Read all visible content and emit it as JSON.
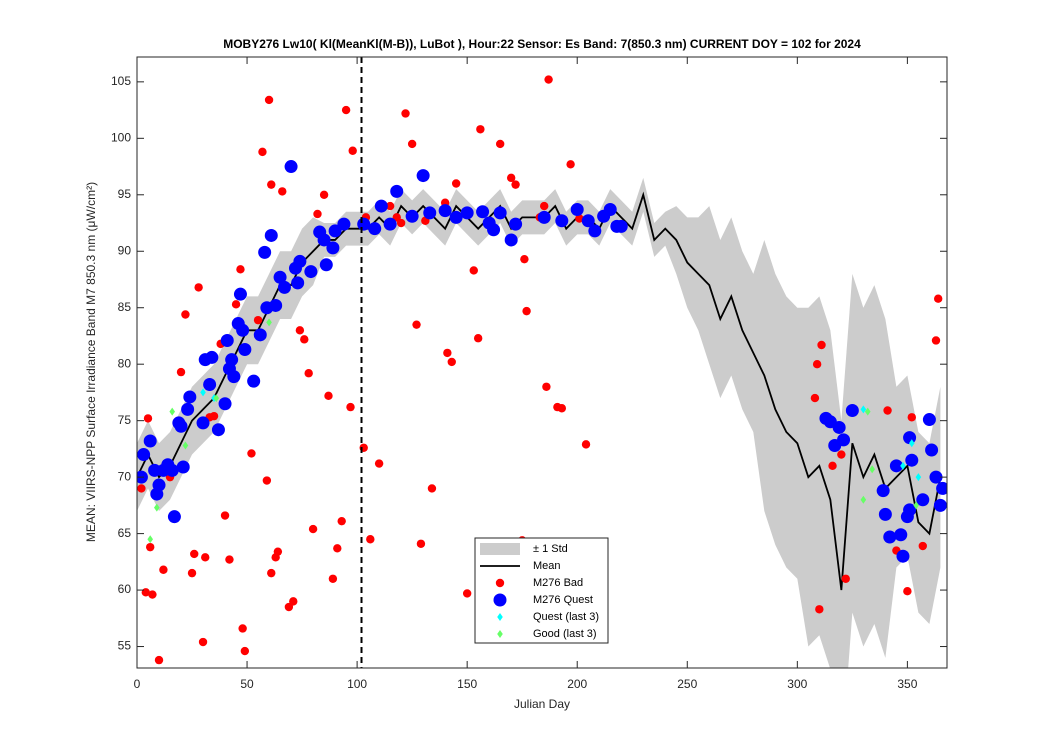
{
  "chart_data": {
    "type": "scatter",
    "title": "MOBY276   Lw10( Kl(MeanKl(M-B)), LuBot ),    Hour:22 Sensor: Es Band: 7(850.3 nm)   CURRENT DOY = 102 for 2024",
    "x_label": "Julian Day",
    "y_label": "MEAN: VIIRS-NPP Surface Irradiance Band M7 850.3 nm (μW/cm²)",
    "xlim": [
      0,
      368
    ],
    "ylim": [
      53.1,
      107.2
    ],
    "xticks": [
      0,
      50,
      100,
      150,
      200,
      250,
      300,
      350
    ],
    "yticks": [
      55,
      60,
      65,
      70,
      75,
      80,
      85,
      90,
      95,
      100,
      105
    ],
    "vline_x": 102,
    "legend_loc": "lower center",
    "series": [
      {
        "name": "± 1 Std",
        "kind": "band",
        "color": "#cccccc",
        "x": [
          0,
          5,
          10,
          15,
          20,
          25,
          30,
          35,
          40,
          45,
          50,
          55,
          60,
          65,
          70,
          75,
          80,
          85,
          90,
          95,
          100,
          105,
          110,
          115,
          120,
          125,
          130,
          135,
          140,
          145,
          150,
          155,
          160,
          165,
          170,
          175,
          180,
          185,
          190,
          195,
          200,
          205,
          210,
          215,
          220,
          225,
          230,
          235,
          240,
          245,
          250,
          255,
          260,
          265,
          270,
          275,
          280,
          285,
          290,
          295,
          300,
          305,
          310,
          315,
          320,
          325,
          330,
          335,
          340,
          345,
          350,
          355,
          360,
          365
        ],
        "upper": [
          73,
          75,
          73,
          74,
          76,
          78,
          79,
          80,
          82,
          84,
          86,
          86,
          88,
          90,
          90,
          92,
          93,
          92.5,
          92.5,
          93.5,
          93.5,
          93.5,
          94.5,
          93.5,
          95.5,
          94.5,
          95.5,
          94.5,
          93.5,
          95.5,
          94.5,
          93.5,
          94.5,
          95.5,
          93.5,
          94.5,
          94.5,
          94.5,
          95.5,
          93.5,
          94.5,
          94.5,
          93.5,
          95.5,
          94.5,
          93.5,
          96.5,
          92.5,
          93.5,
          94,
          93,
          93,
          94,
          91,
          93,
          90,
          88,
          91,
          88,
          86,
          85,
          85,
          86,
          83,
          75,
          88,
          85,
          87,
          84,
          78,
          79,
          74,
          73,
          78
        ],
        "lower": [
          67,
          69,
          67,
          68,
          70,
          72,
          73,
          74,
          76,
          78,
          80,
          80,
          82,
          84,
          84,
          86,
          87,
          89.5,
          89.5,
          90.5,
          90.5,
          90.5,
          91.5,
          90.5,
          92.5,
          91.5,
          92.5,
          91.5,
          90.5,
          92.5,
          91.5,
          90.5,
          91.5,
          92.5,
          90.5,
          91.5,
          91.5,
          91.5,
          92.5,
          90.5,
          91.5,
          91.5,
          90.5,
          92.5,
          91.5,
          90.5,
          93.5,
          89.5,
          90.5,
          88,
          85,
          83,
          80,
          77,
          79,
          76,
          74,
          67,
          64,
          62,
          61,
          55,
          56,
          53,
          45,
          58,
          55,
          57,
          54,
          62,
          63,
          58,
          57,
          62
        ]
      },
      {
        "name": "Mean",
        "kind": "line",
        "color": "#000000",
        "x": [
          0,
          5,
          10,
          15,
          20,
          25,
          30,
          35,
          40,
          45,
          50,
          55,
          60,
          65,
          70,
          75,
          80,
          85,
          90,
          95,
          100,
          105,
          110,
          115,
          120,
          125,
          130,
          135,
          140,
          145,
          150,
          155,
          160,
          165,
          170,
          175,
          180,
          185,
          190,
          195,
          200,
          205,
          210,
          215,
          220,
          225,
          230,
          235,
          240,
          245,
          250,
          255,
          260,
          265,
          270,
          275,
          280,
          285,
          290,
          295,
          300,
          305,
          310,
          315,
          320,
          325,
          330,
          335,
          340,
          345,
          350,
          355,
          360,
          365
        ],
        "values": [
          70,
          72,
          70,
          71,
          73,
          75,
          76,
          77,
          79,
          81,
          83,
          83,
          85,
          87,
          87,
          89,
          90,
          91,
          91,
          92,
          92,
          92,
          93,
          92,
          94,
          93,
          94,
          93,
          92,
          94,
          93,
          92,
          93,
          94,
          92,
          93,
          93,
          93,
          94,
          92,
          93,
          93,
          92,
          94,
          93,
          92,
          95,
          91,
          92,
          91,
          89,
          88,
          87,
          84,
          86,
          83,
          81,
          79,
          76,
          74,
          73,
          70,
          71,
          68,
          60,
          73,
          70,
          72,
          69,
          70,
          71,
          66,
          65,
          70
        ]
      },
      {
        "name": "M276 Bad",
        "kind": "dot",
        "color": "#ff0000",
        "x": [
          2,
          4,
          5,
          6,
          7,
          10,
          12,
          15,
          17,
          20,
          22,
          25,
          26,
          28,
          30,
          31,
          33,
          35,
          38,
          40,
          42,
          45,
          47,
          48,
          49,
          52,
          55,
          57,
          59,
          60,
          61,
          61,
          63,
          64,
          66,
          69,
          71,
          74,
          76,
          78,
          80,
          82,
          85,
          87,
          89,
          91,
          93,
          95,
          97,
          98,
          103,
          104,
          106,
          110,
          115,
          118,
          120,
          122,
          125,
          127,
          129,
          131,
          134,
          140,
          141,
          143,
          145,
          150,
          153,
          155,
          156,
          165,
          170,
          172,
          175,
          176,
          177,
          183,
          185,
          186,
          187,
          191,
          193,
          197,
          201,
          204,
          308,
          309,
          310,
          311,
          316,
          320,
          322,
          341,
          345,
          350,
          352,
          357,
          363,
          364
        ],
        "values": [
          69,
          59.8,
          75.2,
          63.8,
          59.6,
          53.8,
          61.8,
          70,
          66.3,
          79.3,
          84.4,
          61.5,
          63.2,
          86.8,
          55.4,
          62.9,
          75.3,
          75.4,
          81.8,
          66.6,
          62.7,
          85.3,
          88.4,
          56.6,
          54.6,
          72.1,
          83.9,
          98.8,
          69.7,
          103.4,
          95.9,
          61.5,
          62.9,
          63.4,
          95.3,
          58.5,
          59,
          83,
          82.2,
          79.2,
          65.4,
          93.3,
          95,
          77.2,
          61,
          63.7,
          66.1,
          102.5,
          76.2,
          98.9,
          72.6,
          93,
          64.5,
          71.2,
          94,
          93,
          92.5,
          102.2,
          99.5,
          83.5,
          64.1,
          92.7,
          69,
          94.3,
          81,
          80.2,
          96,
          59.7,
          88.3,
          82.3,
          100.8,
          99.5,
          96.5,
          95.9,
          64.4,
          89.3,
          84.7,
          93,
          94,
          78,
          105.2,
          76.2,
          76.1,
          97.7,
          92.9,
          72.9,
          77,
          80,
          58.3,
          81.7,
          71,
          72,
          61,
          75.9,
          63.5,
          59.9,
          75.3,
          63.9,
          82.1,
          85.8
        ]
      },
      {
        "name": "M276 Quest",
        "kind": "dot",
        "color": "#0000ff",
        "x": [
          2,
          3,
          6,
          8,
          9,
          10,
          12,
          14,
          16,
          17,
          19,
          20,
          21,
          23,
          24,
          30,
          31,
          33,
          34,
          37,
          40,
          41,
          42,
          43,
          44,
          46,
          47,
          48,
          49,
          53,
          56,
          58,
          59,
          61,
          63,
          65,
          67,
          70,
          72,
          73,
          74,
          79,
          83,
          85,
          86,
          89,
          90,
          94,
          103,
          108,
          111,
          115,
          118,
          125,
          130,
          133,
          140,
          145,
          150,
          157,
          160,
          162,
          165,
          170,
          172,
          185,
          193,
          200,
          205,
          208,
          212,
          215,
          218,
          220,
          313,
          315,
          317,
          319,
          321,
          325,
          339,
          340,
          342,
          345,
          347,
          348,
          350,
          351,
          351,
          352,
          357,
          360,
          361,
          363,
          365,
          366
        ],
        "values": [
          70,
          72,
          73.2,
          70.6,
          68.5,
          69.3,
          70.6,
          71.1,
          70.6,
          66.5,
          74.8,
          74.5,
          70.9,
          76,
          77.1,
          74.8,
          80.4,
          78.2,
          80.6,
          74.2,
          76.5,
          82.1,
          79.6,
          80.4,
          78.9,
          83.6,
          86.2,
          83,
          81.3,
          78.5,
          82.6,
          89.9,
          85,
          91.4,
          85.2,
          87.7,
          86.8,
          97.5,
          88.5,
          87.2,
          89.1,
          88.2,
          91.7,
          91,
          88.8,
          90.3,
          91.8,
          92.4,
          92.4,
          92,
          94,
          92.4,
          95.3,
          93.1,
          96.7,
          93.4,
          93.6,
          93,
          93.4,
          93.5,
          92.5,
          91.9,
          93.4,
          91,
          92.4,
          93,
          92.7,
          93.7,
          92.7,
          91.8,
          93.1,
          93.7,
          92.2,
          92.2,
          75.2,
          74.9,
          72.8,
          74.4,
          73.3,
          75.9,
          68.8,
          66.7,
          64.7,
          71,
          64.9,
          63,
          66.5,
          67.1,
          73.5,
          71.5,
          68,
          75.1,
          72.4,
          70,
          67.5,
          69
        ]
      },
      {
        "name": "Quest (last 3)",
        "kind": "diamond",
        "color": "#00ffff",
        "x": [
          30,
          35,
          330,
          348,
          352,
          355
        ],
        "values": [
          77.5,
          77,
          76,
          71,
          73,
          70
        ]
      },
      {
        "name": "Good (last 3)",
        "kind": "diamond",
        "color": "#66ff66",
        "x": [
          6,
          9,
          16,
          22,
          36,
          60,
          332,
          334,
          330,
          354
        ],
        "values": [
          64.5,
          67.3,
          75.8,
          72.8,
          77,
          83.7,
          75.8,
          70.7,
          68,
          67.5
        ]
      }
    ]
  }
}
